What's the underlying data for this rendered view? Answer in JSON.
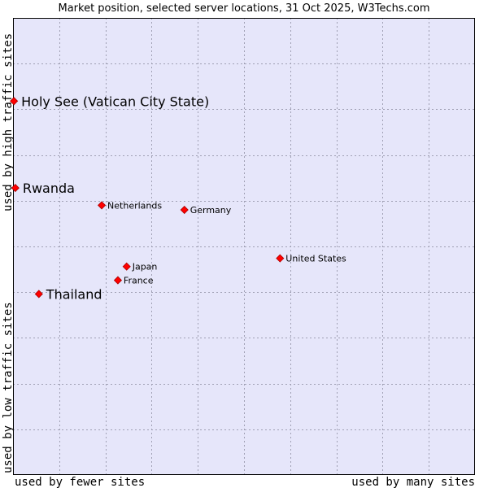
{
  "chart_data": {
    "type": "scatter",
    "title": "Market position, selected server locations, 31 Oct 2025, W3Techs.com",
    "xlabel_left": "used by fewer sites",
    "xlabel_right": "used by many sites",
    "ylabel_top": "used by high traffic sites",
    "ylabel_bottom": "used by low traffic sites",
    "xlim": [
      0,
      100
    ],
    "ylim": [
      0,
      100
    ],
    "grid": true,
    "gridlines": 10,
    "colors": {
      "plot_background": "#e6e6fa",
      "grid": "#a0a0b4",
      "border": "#000000",
      "point": "#ff0000",
      "point_edge": "#aa0000"
    },
    "points": [
      {
        "name": "Holy See (Vatican City State)",
        "x": 0.2,
        "y": 81.8,
        "highlight": true
      },
      {
        "name": "Rwanda",
        "x": 0.5,
        "y": 62.8,
        "highlight": true
      },
      {
        "name": "Thailand",
        "x": 5.6,
        "y": 39.6,
        "highlight": true
      },
      {
        "name": "Netherlands",
        "x": 19.2,
        "y": 59.0,
        "highlight": false
      },
      {
        "name": "Germany",
        "x": 37.1,
        "y": 58.0,
        "highlight": false
      },
      {
        "name": "United States",
        "x": 57.8,
        "y": 47.4,
        "highlight": false
      },
      {
        "name": "Japan",
        "x": 24.6,
        "y": 45.6,
        "highlight": false
      },
      {
        "name": "France",
        "x": 22.7,
        "y": 42.6,
        "highlight": false
      }
    ]
  }
}
